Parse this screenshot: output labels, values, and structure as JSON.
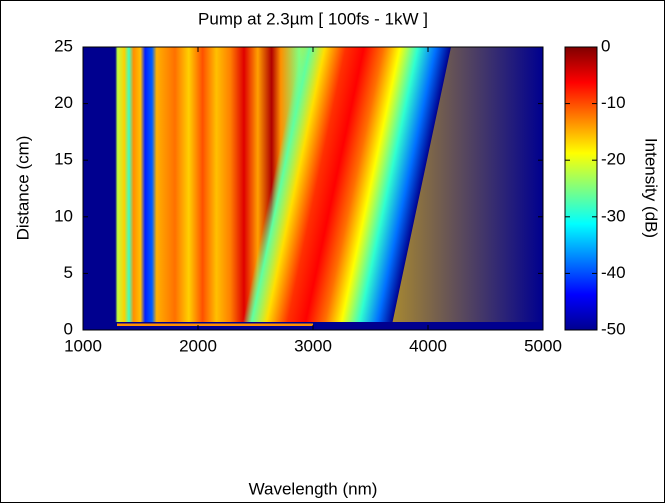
{
  "chart_data": {
    "type": "heatmap",
    "title": "Pump at 2.3µm [ 100fs - 1kW ]",
    "x_label": "Wavelength (nm)",
    "y_label": "Distance (cm)",
    "colorbar_label": "Intensity (dB)",
    "colormap": "jet",
    "xlim": [
      1000,
      5000
    ],
    "xticks": [
      1000,
      2000,
      3000,
      4000,
      5000
    ],
    "ylim": [
      0,
      25
    ],
    "yticks": [
      0,
      5,
      10,
      15,
      20,
      25
    ],
    "clim": [
      -50,
      0
    ],
    "cticks": [
      0,
      -10,
      -20,
      -30,
      -40,
      -50
    ]
  }
}
